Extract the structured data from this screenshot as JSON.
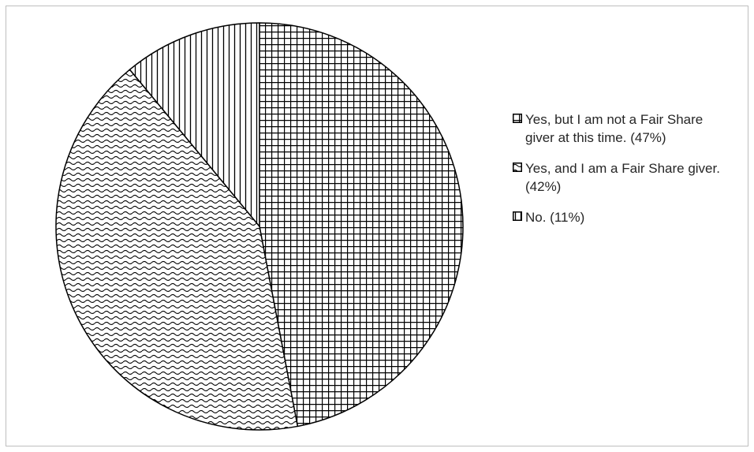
{
  "chart_data": {
    "type": "pie",
    "slices": [
      {
        "label": "Yes, but I am not a Fair Share giver at this time. (47%)",
        "value": 47,
        "pattern": "grid"
      },
      {
        "label": "Yes, and I am a Fair Share giver. (42%)",
        "value": 42,
        "pattern": "wave"
      },
      {
        "label": "No. (11%)",
        "value": 11,
        "pattern": "vertical"
      }
    ],
    "legend_position": "right",
    "colors": {
      "stroke": "#000000",
      "fill": "#ffffff",
      "text": "#262626",
      "border": "#bfbfbf"
    }
  }
}
